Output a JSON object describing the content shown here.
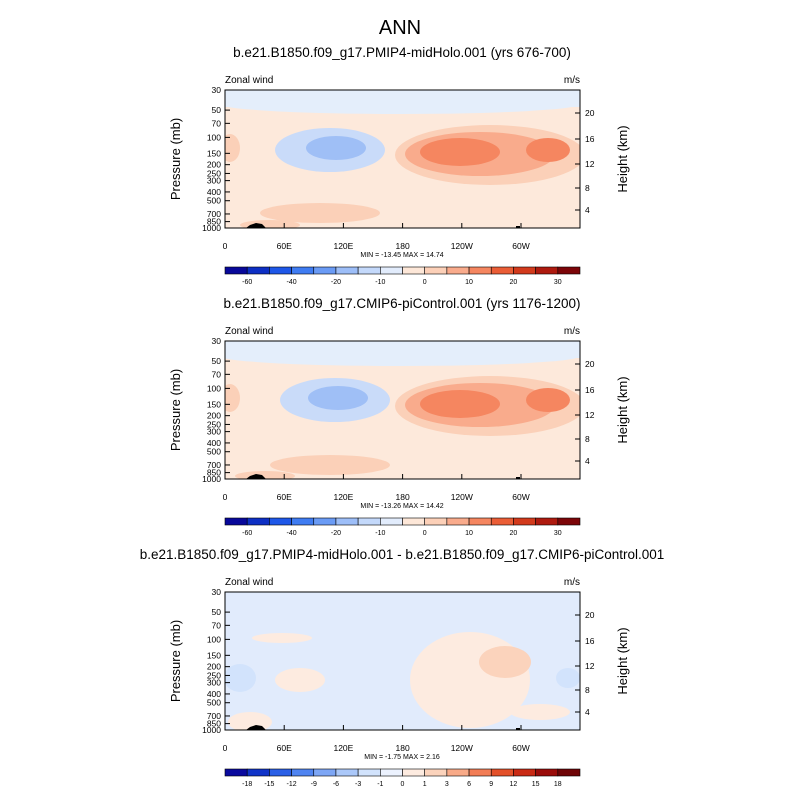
{
  "figure_title": "ANN",
  "chart_data": [
    {
      "type": "heatmap",
      "title": "b.e21.B1850.f09_g17.PMIP4-midHolo.001 (yrs 676-700)",
      "left_label": "Zonal wind",
      "right_label": "m/s",
      "ylabel": "Pressure (mb)",
      "y2label": "Height (km)",
      "x_ticks": [
        "0",
        "60E",
        "120E",
        "180",
        "120W",
        "60W"
      ],
      "y_ticks": [
        "30",
        "50",
        "70",
        "100",
        "150",
        "200",
        "250",
        "300",
        "400",
        "500",
        "700",
        "850",
        "1000"
      ],
      "y2_ticks": [
        "20",
        "16",
        "12",
        "8",
        "4"
      ],
      "ylim": [
        1000,
        30
      ],
      "y_log": true,
      "stats": "MIN = -13.45  MAX =  14.74",
      "levels": [
        -60,
        -50,
        -40,
        -30,
        -20,
        -15,
        -10,
        -5,
        0,
        5,
        10,
        15,
        20,
        25,
        30,
        35
      ],
      "colorbar_labels": [
        "-60",
        "-40",
        "-20",
        "-10",
        "0",
        "10",
        "20",
        "30"
      ]
    },
    {
      "type": "heatmap",
      "title": "b.e21.B1850.f09_g17.CMIP6-piControl.001 (yrs 1176-1200)",
      "left_label": "Zonal wind",
      "right_label": "m/s",
      "ylabel": "Pressure (mb)",
      "y2label": "Height (km)",
      "x_ticks": [
        "0",
        "60E",
        "120E",
        "180",
        "120W",
        "60W"
      ],
      "y_ticks": [
        "30",
        "50",
        "70",
        "100",
        "150",
        "200",
        "250",
        "300",
        "400",
        "500",
        "700",
        "850",
        "1000"
      ],
      "y2_ticks": [
        "20",
        "16",
        "12",
        "8",
        "4"
      ],
      "ylim": [
        1000,
        30
      ],
      "y_log": true,
      "stats": "MIN = -13.26  MAX =  14.42",
      "levels": [
        -60,
        -50,
        -40,
        -30,
        -20,
        -15,
        -10,
        -5,
        0,
        5,
        10,
        15,
        20,
        25,
        30,
        35
      ],
      "colorbar_labels": [
        "-60",
        "-40",
        "-20",
        "-10",
        "0",
        "10",
        "20",
        "30"
      ]
    },
    {
      "type": "heatmap",
      "title": "b.e21.B1850.f09_g17.PMIP4-midHolo.001 - b.e21.B1850.f09_g17.CMIP6-piControl.001",
      "left_label": "Zonal wind",
      "right_label": "m/s",
      "ylabel": "Pressure (mb)",
      "y2label": "Height (km)",
      "x_ticks": [
        "0",
        "60E",
        "120E",
        "180",
        "120W",
        "60W"
      ],
      "y_ticks": [
        "30",
        "50",
        "70",
        "100",
        "150",
        "200",
        "250",
        "300",
        "400",
        "500",
        "700",
        "850",
        "1000"
      ],
      "y2_ticks": [
        "20",
        "16",
        "12",
        "8",
        "4"
      ],
      "ylim": [
        1000,
        30
      ],
      "y_log": true,
      "stats": "MIN = -1.75  MAX =  2.16",
      "levels": [
        -18,
        -15,
        -12,
        -9,
        -6,
        -3,
        -1,
        0,
        1,
        3,
        6,
        9,
        12,
        15,
        18
      ],
      "colorbar_labels": [
        "-18",
        "-15",
        "-12",
        "-9",
        "-6",
        "-3",
        "-1",
        "0",
        "1",
        "3",
        "6",
        "9",
        "12",
        "15",
        "18"
      ]
    }
  ],
  "colors": {
    "cb_main": [
      "#08089a",
      "#0d2fc4",
      "#1e57e8",
      "#3f7cf2",
      "#6a9bf5",
      "#9dbef8",
      "#c4d9fb",
      "#e2ecfc",
      "#fde7d8",
      "#fcd0b8",
      "#f9ab8c",
      "#f58660",
      "#ea5d36",
      "#d23a1c",
      "#ae1a0f",
      "#7c0508"
    ],
    "cb_diff": [
      "#0a0a9e",
      "#1034c8",
      "#2a5fe6",
      "#4f84f1",
      "#7da6f5",
      "#abc8f9",
      "#d2e3fc",
      "#ecf2fe",
      "#fdebe0",
      "#fbd3bc",
      "#f8aa88",
      "#f27d56",
      "#e35029",
      "#c92a14",
      "#9a0c0a",
      "#6e0406"
    ]
  }
}
